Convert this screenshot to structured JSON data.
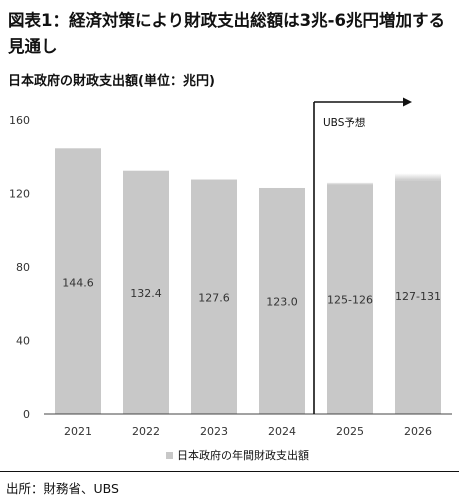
{
  "title": "図表1：経済対策により財政支出総額は3兆-6兆円増加する見通し",
  "subtitle": "日本政府の財政支出額(単位：兆円)",
  "source": "出所：財務省、UBS",
  "chart_data": {
    "type": "bar",
    "categories": [
      "2021",
      "2022",
      "2023",
      "2024",
      "2025",
      "2026"
    ],
    "series": [
      {
        "name": "日本政府の年間財政支出額",
        "values": [
          144.6,
          132.4,
          127.6,
          123.0,
          125.5,
          129.0
        ],
        "ranges": [
          null,
          null,
          null,
          null,
          [
            125,
            126
          ],
          [
            127,
            131
          ]
        ],
        "labels": [
          "144.6",
          "132.4",
          "127.6",
          "123.0",
          "125-126",
          "127-131"
        ]
      }
    ],
    "ylim": [
      0,
      160
    ],
    "yticks": [
      0,
      40,
      80,
      120,
      160
    ],
    "xlabel": "",
    "ylabel": "",
    "annotation": "UBS予想",
    "forecast_start": "2025",
    "legend_position": "bottom",
    "bar_color": "#c8c8c8",
    "grid": false
  }
}
